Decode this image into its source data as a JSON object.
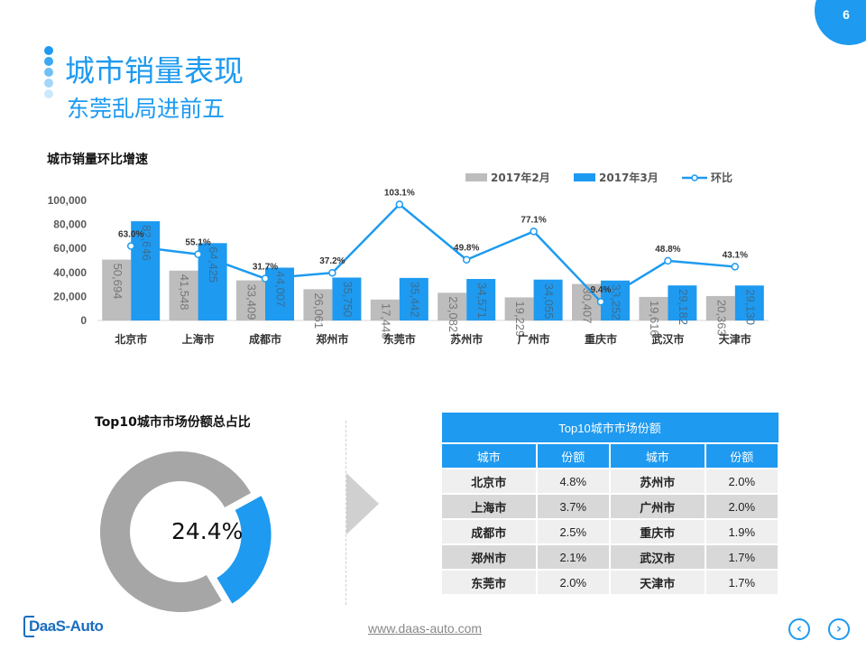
{
  "page_number": "6",
  "title": "城市销量表现",
  "subtitle": "东莞乱局进前五",
  "chart_title": "城市销量环比增速",
  "chart_data": {
    "type": "bar",
    "categories": [
      "北京市",
      "上海市",
      "成都市",
      "郑州市",
      "东莞市",
      "苏州市",
      "广州市",
      "重庆市",
      "武汉市",
      "天津市"
    ],
    "series": [
      {
        "name": "2017年2月",
        "kind": "bar",
        "color": "#bdbdbd",
        "values": [
          50694,
          41548,
          33409,
          26061,
          17448,
          23082,
          19229,
          30407,
          19616,
          20363
        ],
        "labels": [
          "50,694",
          "41,548",
          "33,409",
          "26,061",
          "17,448",
          "23,082",
          "19,229",
          "30,407",
          "19,616",
          "20,363"
        ]
      },
      {
        "name": "2017年3月",
        "kind": "bar",
        "color": "#1e9af0",
        "values": [
          82646,
          64425,
          44007,
          35750,
          35442,
          34571,
          34055,
          33252,
          29182,
          29130
        ],
        "labels": [
          "82,646",
          "64,425",
          "44,007",
          "35,750",
          "35,442",
          "34,571",
          "34,055",
          "33,252",
          "29,182",
          "29,130"
        ]
      },
      {
        "name": "环比",
        "kind": "line",
        "color": "#1e9af0",
        "values": [
          63.0,
          55.1,
          31.7,
          37.2,
          103.1,
          49.8,
          77.1,
          9.4,
          48.8,
          43.1
        ],
        "labels": [
          "63.0%",
          "55.1%",
          "31.7%",
          "37.2%",
          "103.1%",
          "49.8%",
          "77.1%",
          "9.4%",
          "48.8%",
          "43.1%"
        ]
      }
    ],
    "y_ticks": [
      "100,000",
      "80,000",
      "60,000",
      "40,000",
      "20,000",
      "0"
    ],
    "ylim": [
      0,
      100000
    ],
    "legend_position": "top-right"
  },
  "donut": {
    "title": "Top10城市市场份额总占比",
    "value_label": "24.4%",
    "share": 0.244,
    "colors": {
      "share": "#1e9af0",
      "rest": "#a6a6a6"
    }
  },
  "table": {
    "caption": "Top10城市市场份额",
    "headers": [
      "城市",
      "份额",
      "城市",
      "份额"
    ],
    "rows": [
      [
        "北京市",
        "4.8%",
        "苏州市",
        "2.0%"
      ],
      [
        "上海市",
        "3.7%",
        "广州市",
        "2.0%"
      ],
      [
        "成都市",
        "2.5%",
        "重庆市",
        "1.9%"
      ],
      [
        "郑州市",
        "2.1%",
        "武汉市",
        "1.7%"
      ],
      [
        "东莞市",
        "2.0%",
        "天津市",
        "1.7%"
      ]
    ]
  },
  "footer": {
    "logo": "DaaS-Auto",
    "url": "www.daas-auto.com",
    "prev_icon": "chevron-left-icon",
    "next_icon": "chevron-right-icon"
  },
  "colors": {
    "accent": "#1e9af0",
    "gray_bar": "#bdbdbd"
  }
}
